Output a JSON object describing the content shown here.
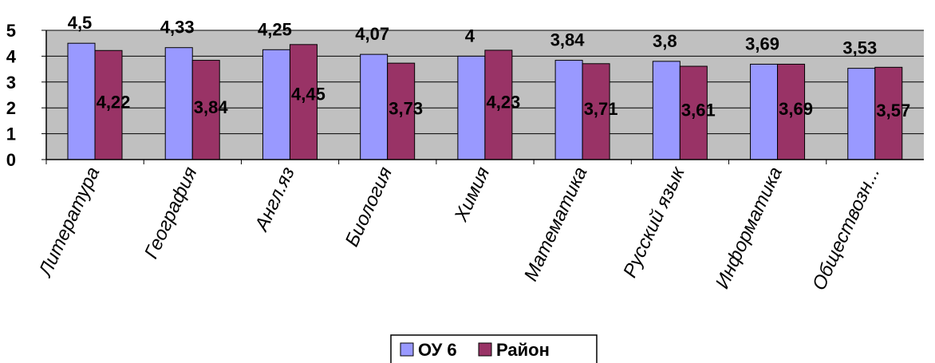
{
  "chart_data": {
    "type": "bar",
    "categories": [
      "Литература",
      "География",
      "Англ.яз",
      "Биология",
      "Химия",
      "Математика",
      "Русский язык",
      "Информатика",
      "Обществозн..."
    ],
    "series": [
      {
        "name": "ОУ 6",
        "color": "#9999ff",
        "values": [
          4.5,
          4.33,
          4.25,
          4.07,
          4,
          3.84,
          3.8,
          3.69,
          3.53
        ],
        "labels": [
          "4,5",
          "4,33",
          "4,25",
          "4,07",
          "4",
          "3,84",
          "3,8",
          "3,69",
          "3,53"
        ]
      },
      {
        "name": "Район",
        "color": "#993366",
        "values": [
          4.22,
          3.84,
          4.45,
          3.73,
          4.23,
          3.71,
          3.61,
          3.69,
          3.57
        ],
        "labels": [
          "4,22",
          "3,84",
          "4,45",
          "3,73",
          "4,23",
          "3,71",
          "3,61",
          "3,69",
          "3,57"
        ]
      }
    ],
    "y_ticks": [
      "0",
      "1",
      "2",
      "3",
      "4",
      "5"
    ],
    "ylim": [
      0,
      5
    ],
    "grid": true,
    "plot_background": "#c0c0c0",
    "legend_position": "bottom-center"
  }
}
